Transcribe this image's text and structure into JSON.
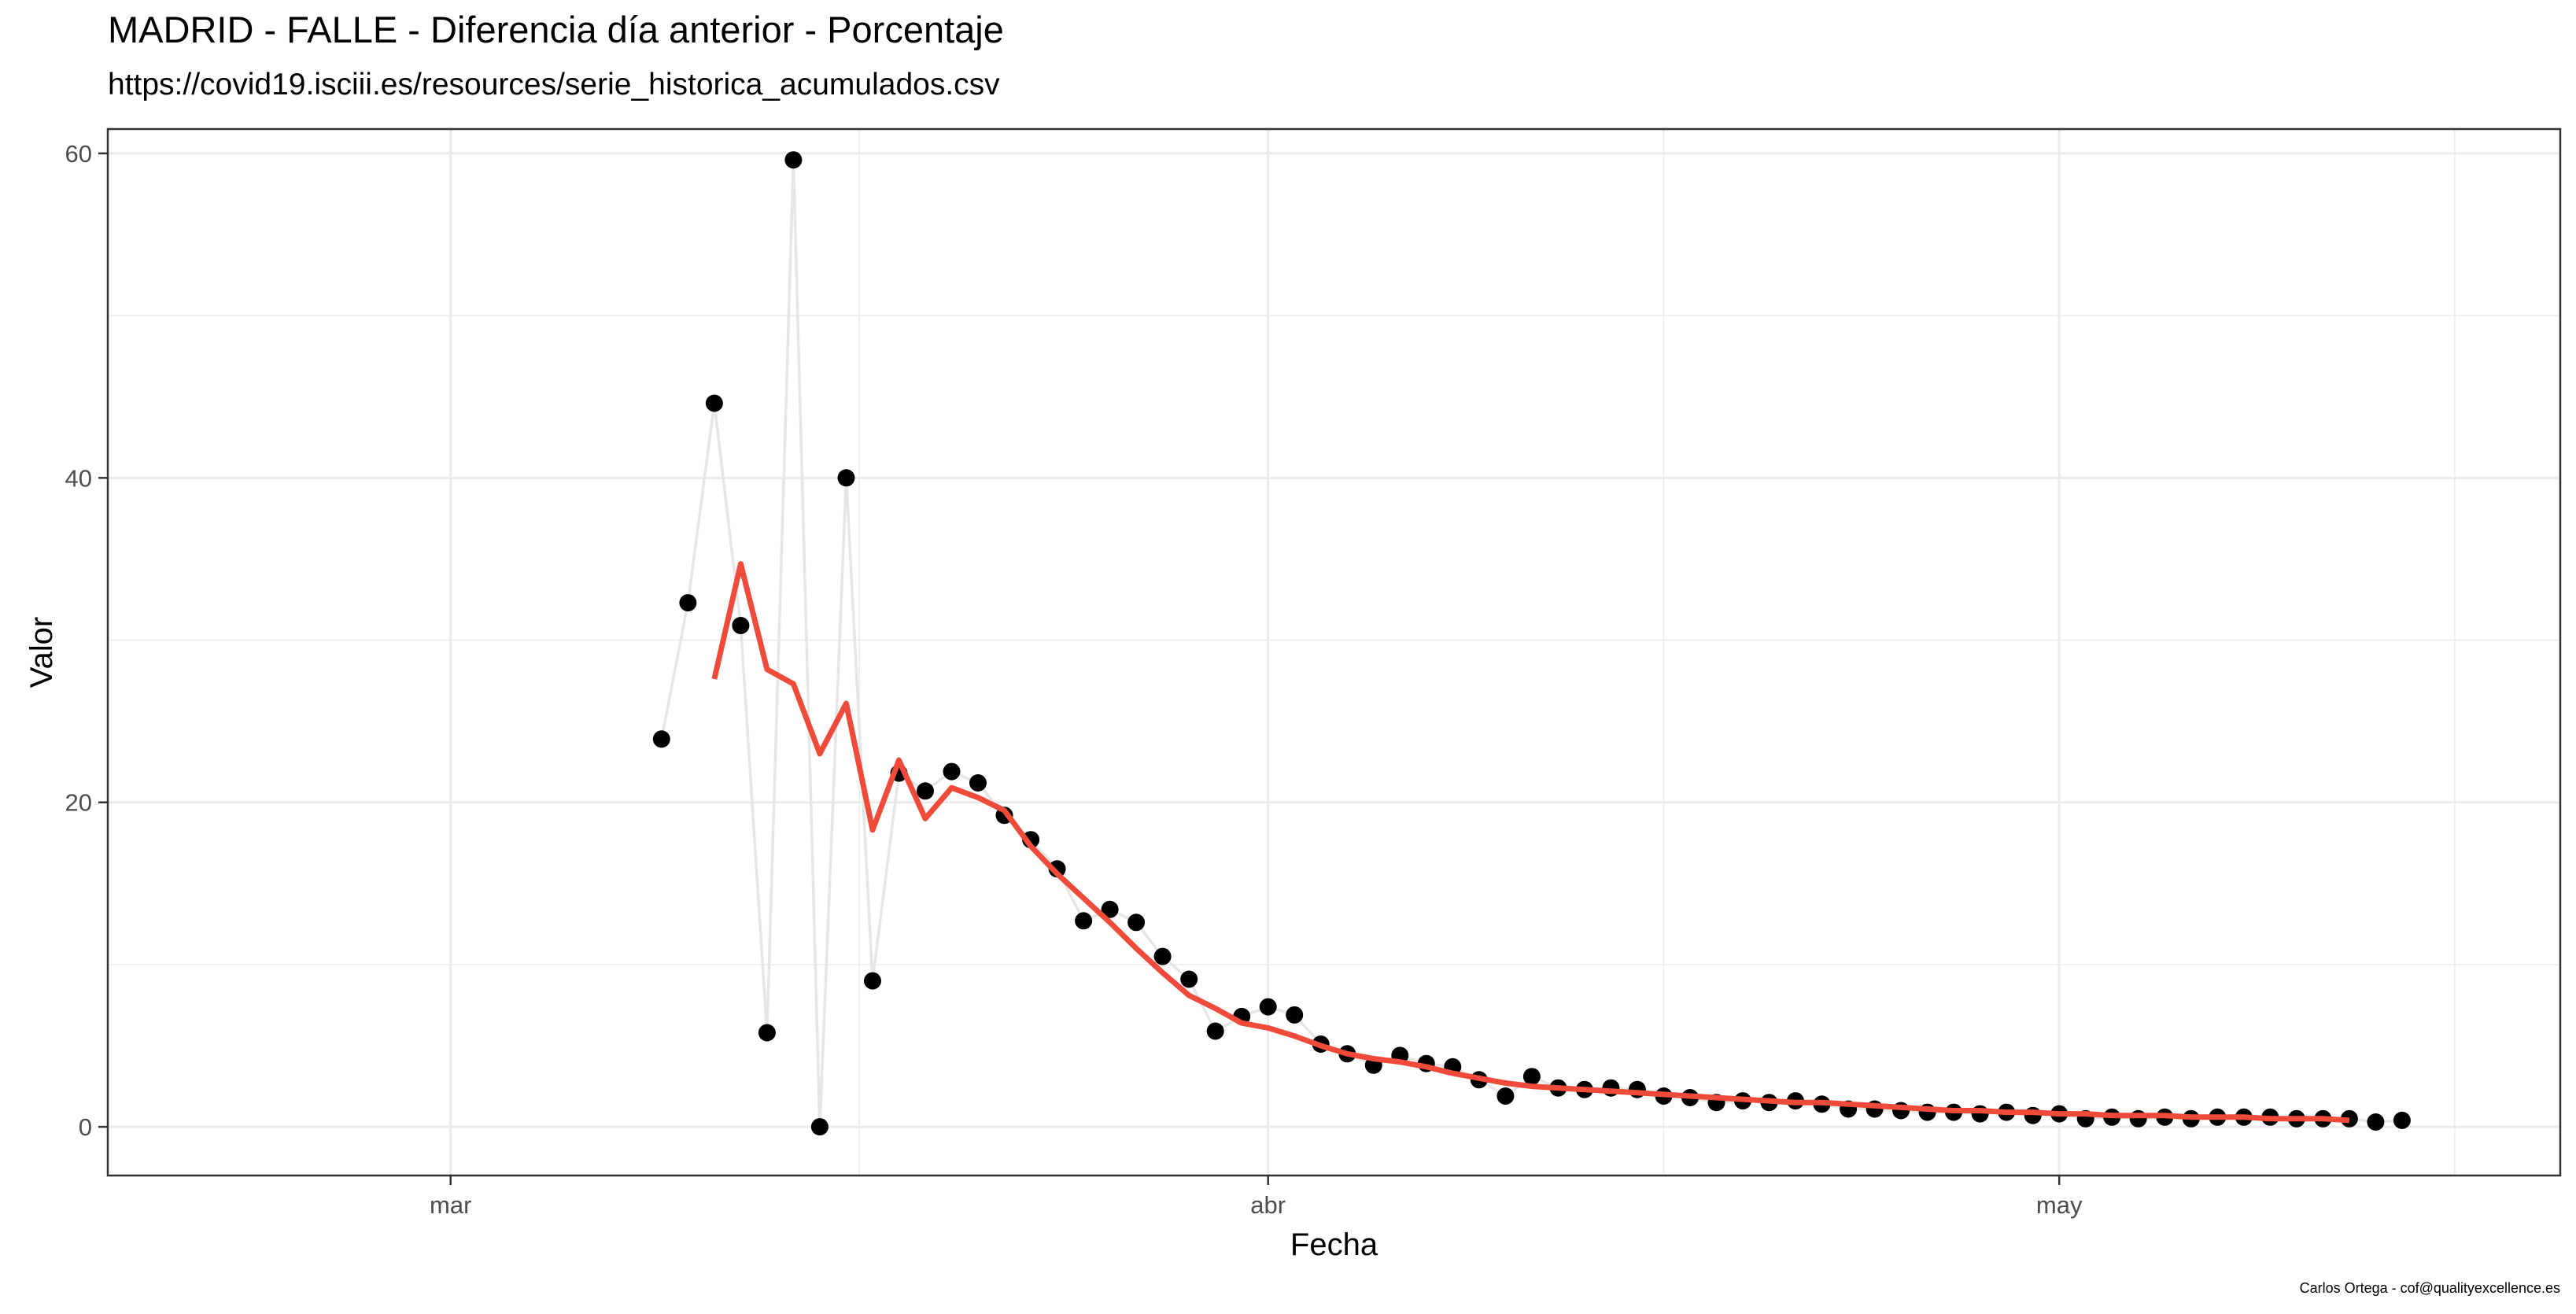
{
  "title": "MADRID - FALLE - Diferencia día anterior - Porcentaje",
  "subtitle": "https://covid19.isciii.es/resources/serie_historica_acumulados.csv",
  "caption": "Carlos Ortega - cof@qualityexcellence.es",
  "colors": {
    "points": "#000000",
    "raw_line": "#e6e6e6",
    "smooth_line": "#f04b3a",
    "grid": "#ebebeb",
    "panel_border": "#333333"
  },
  "chart_data": {
    "type": "line",
    "xlabel": "Fecha",
    "ylabel": "Valor",
    "x_range": [
      "2020-02-17",
      "2020-05-20"
    ],
    "ylim": [
      -3.0,
      61.5
    ],
    "x_ticks": [
      {
        "date": "2020-03-01",
        "label": "mar"
      },
      {
        "date": "2020-04-01",
        "label": "abr"
      },
      {
        "date": "2020-05-01",
        "label": "may"
      }
    ],
    "y_ticks": [
      0,
      20,
      40,
      60
    ],
    "grid": true,
    "legend": "none",
    "series": [
      {
        "kind": "points",
        "x": [
          "2020-03-09",
          "2020-03-10",
          "2020-03-11",
          "2020-03-12",
          "2020-03-13",
          "2020-03-14",
          "2020-03-15",
          "2020-03-16",
          "2020-03-17",
          "2020-03-18",
          "2020-03-19",
          "2020-03-20",
          "2020-03-21",
          "2020-03-22",
          "2020-03-23",
          "2020-03-24",
          "2020-03-25",
          "2020-03-26",
          "2020-03-27",
          "2020-03-28",
          "2020-03-29",
          "2020-03-30",
          "2020-03-31",
          "2020-04-01",
          "2020-04-02",
          "2020-04-03",
          "2020-04-04",
          "2020-04-05",
          "2020-04-06",
          "2020-04-07",
          "2020-04-08",
          "2020-04-09",
          "2020-04-10",
          "2020-04-11",
          "2020-04-12",
          "2020-04-13",
          "2020-04-14",
          "2020-04-15",
          "2020-04-16",
          "2020-04-17",
          "2020-04-18",
          "2020-04-19",
          "2020-04-20",
          "2020-04-21",
          "2020-04-22",
          "2020-04-23",
          "2020-04-24",
          "2020-04-25",
          "2020-04-26",
          "2020-04-27",
          "2020-04-28",
          "2020-04-29",
          "2020-04-30",
          "2020-05-01",
          "2020-05-02",
          "2020-05-03",
          "2020-05-04",
          "2020-05-05",
          "2020-05-06",
          "2020-05-07",
          "2020-05-08",
          "2020-05-09",
          "2020-05-10",
          "2020-05-11",
          "2020-05-12",
          "2020-05-13",
          "2020-05-14"
        ],
        "y": [
          23.9,
          32.3,
          44.6,
          30.9,
          5.8,
          59.6,
          0.0,
          40.0,
          9.0,
          21.8,
          20.7,
          21.9,
          21.2,
          19.2,
          17.7,
          15.9,
          12.7,
          13.4,
          12.6,
          10.5,
          9.1,
          5.9,
          6.8,
          7.4,
          6.9,
          5.1,
          4.5,
          3.8,
          4.4,
          3.9,
          3.7,
          2.9,
          1.9,
          3.1,
          2.4,
          2.3,
          2.4,
          2.3,
          1.9,
          1.8,
          1.5,
          1.6,
          1.5,
          1.6,
          1.4,
          1.1,
          1.1,
          1.0,
          0.9,
          0.9,
          0.8,
          0.9,
          0.7,
          0.8,
          0.5,
          0.6,
          0.5,
          0.6,
          0.5,
          0.6,
          0.6,
          0.6,
          0.5,
          0.5,
          0.5,
          0.3,
          0.4
        ]
      },
      {
        "kind": "smooth",
        "x": [
          "2020-03-11",
          "2020-03-12",
          "2020-03-13",
          "2020-03-14",
          "2020-03-15",
          "2020-03-16",
          "2020-03-17",
          "2020-03-18",
          "2020-03-19",
          "2020-03-20",
          "2020-03-21",
          "2020-03-22",
          "2020-03-23",
          "2020-03-24",
          "2020-03-25",
          "2020-03-26",
          "2020-03-27",
          "2020-03-28",
          "2020-03-29",
          "2020-03-30",
          "2020-03-31",
          "2020-04-01",
          "2020-04-02",
          "2020-04-03",
          "2020-04-04",
          "2020-04-05",
          "2020-04-06",
          "2020-04-07",
          "2020-04-08",
          "2020-04-09",
          "2020-04-10",
          "2020-04-11",
          "2020-04-12",
          "2020-04-13",
          "2020-04-14",
          "2020-04-15",
          "2020-04-16",
          "2020-04-17",
          "2020-04-18",
          "2020-04-19",
          "2020-04-20",
          "2020-04-21",
          "2020-04-22",
          "2020-04-23",
          "2020-04-24",
          "2020-04-25",
          "2020-04-26",
          "2020-04-27",
          "2020-04-28",
          "2020-04-29",
          "2020-04-30",
          "2020-05-01",
          "2020-05-02",
          "2020-05-03",
          "2020-05-04",
          "2020-05-05",
          "2020-05-06",
          "2020-05-07",
          "2020-05-08",
          "2020-05-09",
          "2020-05-10",
          "2020-05-11",
          "2020-05-12"
        ],
        "y": [
          27.6,
          34.7,
          28.2,
          27.3,
          23.0,
          26.1,
          18.3,
          22.6,
          19.0,
          20.9,
          20.3,
          19.5,
          17.3,
          15.6,
          14.1,
          12.6,
          11.0,
          9.5,
          8.1,
          7.3,
          6.4,
          6.1,
          5.6,
          5.0,
          4.5,
          4.2,
          4.0,
          3.7,
          3.3,
          3.0,
          2.7,
          2.5,
          2.4,
          2.3,
          2.2,
          2.1,
          2.0,
          1.9,
          1.8,
          1.7,
          1.6,
          1.5,
          1.5,
          1.4,
          1.3,
          1.2,
          1.1,
          1.0,
          1.0,
          0.9,
          0.9,
          0.8,
          0.8,
          0.7,
          0.7,
          0.7,
          0.6,
          0.6,
          0.6,
          0.5,
          0.5,
          0.5,
          0.4
        ]
      }
    ]
  }
}
